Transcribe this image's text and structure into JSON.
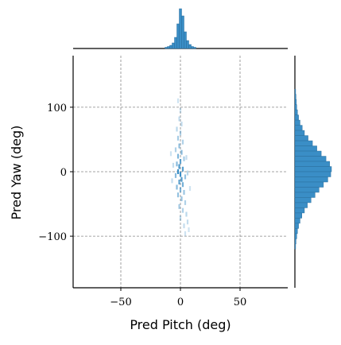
{
  "chart_data": {
    "type": "scatter",
    "subtype": "joint-histogram (2D histogram with marginal histograms)",
    "title": "",
    "xlabel": "Pred Pitch (deg)",
    "ylabel": "Pred Yaw (deg)",
    "xlim": [
      -90,
      90
    ],
    "ylim": [
      -180,
      180
    ],
    "x_ticks": [
      -50,
      0,
      50
    ],
    "x_tick_labels": [
      "−50",
      "0",
      "50"
    ],
    "y_ticks": [
      -100,
      0,
      100
    ],
    "y_tick_labels": [
      "−100",
      "0",
      "100"
    ],
    "grid": true,
    "color": "#3a8ec6",
    "joint_bins": [
      {
        "x": -2,
        "y": 110,
        "c": 0.25
      },
      {
        "x": 0,
        "y": 95,
        "c": 0.25
      },
      {
        "x": -1,
        "y": 82,
        "c": 0.3
      },
      {
        "x": 1,
        "y": 74,
        "c": 0.3
      },
      {
        "x": -3,
        "y": 66,
        "c": 0.35
      },
      {
        "x": 0,
        "y": 60,
        "c": 0.4
      },
      {
        "x": -2,
        "y": 52,
        "c": 0.45
      },
      {
        "x": 2,
        "y": 46,
        "c": 0.4
      },
      {
        "x": -1,
        "y": 40,
        "c": 0.55
      },
      {
        "x": -4,
        "y": 34,
        "c": 0.4
      },
      {
        "x": 1,
        "y": 30,
        "c": 0.6
      },
      {
        "x": -2,
        "y": 24,
        "c": 0.65
      },
      {
        "x": 3,
        "y": 20,
        "c": 0.45
      },
      {
        "x": 0,
        "y": 16,
        "c": 0.8
      },
      {
        "x": -3,
        "y": 12,
        "c": 0.6
      },
      {
        "x": -1,
        "y": 8,
        "c": 0.9
      },
      {
        "x": 2,
        "y": 4,
        "c": 0.85
      },
      {
        "x": -2,
        "y": 0,
        "c": 1.0
      },
      {
        "x": 0,
        "y": -4,
        "c": 1.0
      },
      {
        "x": -4,
        "y": -6,
        "c": 0.6
      },
      {
        "x": 4,
        "y": -8,
        "c": 0.55
      },
      {
        "x": 1,
        "y": -12,
        "c": 0.85
      },
      {
        "x": -1,
        "y": -16,
        "c": 0.8
      },
      {
        "x": 2,
        "y": -20,
        "c": 0.7
      },
      {
        "x": -3,
        "y": -24,
        "c": 0.6
      },
      {
        "x": 0,
        "y": -28,
        "c": 0.65
      },
      {
        "x": 3,
        "y": -32,
        "c": 0.5
      },
      {
        "x": -2,
        "y": -36,
        "c": 0.55
      },
      {
        "x": 1,
        "y": -42,
        "c": 0.5
      },
      {
        "x": 4,
        "y": -48,
        "c": 0.4
      },
      {
        "x": -1,
        "y": -54,
        "c": 0.45
      },
      {
        "x": 2,
        "y": -60,
        "c": 0.4
      },
      {
        "x": 5,
        "y": -66,
        "c": 0.35
      },
      {
        "x": 0,
        "y": -72,
        "c": 0.35
      },
      {
        "x": 6,
        "y": -78,
        "c": 0.3
      },
      {
        "x": 3,
        "y": -84,
        "c": 0.3
      },
      {
        "x": 7,
        "y": -90,
        "c": 0.25
      },
      {
        "x": 4,
        "y": -96,
        "c": 0.25
      },
      {
        "x": -6,
        "y": 10,
        "c": 0.3
      },
      {
        "x": 6,
        "y": -2,
        "c": 0.35
      },
      {
        "x": -7,
        "y": -14,
        "c": 0.3
      },
      {
        "x": 8,
        "y": -26,
        "c": 0.25
      },
      {
        "x": -8,
        "y": 28,
        "c": 0.25
      },
      {
        "x": 5,
        "y": 22,
        "c": 0.3
      }
    ],
    "marginal_x": {
      "bin_width": 2,
      "bins": [
        {
          "x": -12,
          "v": 0.03
        },
        {
          "x": -10,
          "v": 0.05
        },
        {
          "x": -8,
          "v": 0.08
        },
        {
          "x": -6,
          "v": 0.14
        },
        {
          "x": -4,
          "v": 0.28
        },
        {
          "x": -2,
          "v": 0.62
        },
        {
          "x": 0,
          "v": 1.0
        },
        {
          "x": 2,
          "v": 0.82
        },
        {
          "x": 4,
          "v": 0.42
        },
        {
          "x": 6,
          "v": 0.2
        },
        {
          "x": 8,
          "v": 0.1
        },
        {
          "x": 10,
          "v": 0.05
        },
        {
          "x": 12,
          "v": 0.03
        }
      ]
    },
    "marginal_y": {
      "bin_width": 8,
      "bins": [
        {
          "y": 124,
          "v": 0.02
        },
        {
          "y": 116,
          "v": 0.03
        },
        {
          "y": 108,
          "v": 0.04
        },
        {
          "y": 100,
          "v": 0.05
        },
        {
          "y": 92,
          "v": 0.07
        },
        {
          "y": 84,
          "v": 0.1
        },
        {
          "y": 76,
          "v": 0.14
        },
        {
          "y": 68,
          "v": 0.2
        },
        {
          "y": 60,
          "v": 0.26
        },
        {
          "y": 52,
          "v": 0.36
        },
        {
          "y": 44,
          "v": 0.48
        },
        {
          "y": 36,
          "v": 0.6
        },
        {
          "y": 28,
          "v": 0.72
        },
        {
          "y": 20,
          "v": 0.85
        },
        {
          "y": 12,
          "v": 0.95
        },
        {
          "y": 4,
          "v": 1.0
        },
        {
          "y": -4,
          "v": 0.98
        },
        {
          "y": -12,
          "v": 0.9
        },
        {
          "y": -20,
          "v": 0.78
        },
        {
          "y": -28,
          "v": 0.66
        },
        {
          "y": -36,
          "v": 0.55
        },
        {
          "y": -44,
          "v": 0.44
        },
        {
          "y": -52,
          "v": 0.34
        },
        {
          "y": -60,
          "v": 0.26
        },
        {
          "y": -68,
          "v": 0.19
        },
        {
          "y": -76,
          "v": 0.14
        },
        {
          "y": -84,
          "v": 0.1
        },
        {
          "y": -92,
          "v": 0.07
        },
        {
          "y": -100,
          "v": 0.05
        },
        {
          "y": -108,
          "v": 0.03
        },
        {
          "y": -116,
          "v": 0.02
        }
      ]
    }
  }
}
